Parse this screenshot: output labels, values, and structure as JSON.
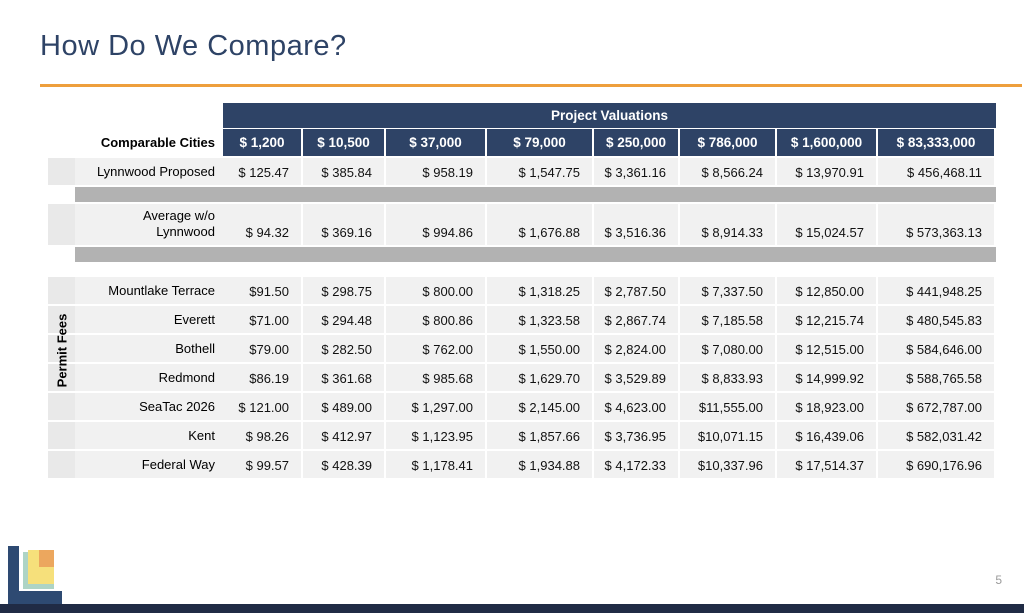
{
  "slide": {
    "title": "How Do We Compare?",
    "page_number": "5",
    "accent_orange": "#ee9f3c",
    "header_navy": "#2e4366"
  },
  "table": {
    "header_group": "Project Valuations",
    "row_header_label": "Comparable Cities",
    "side_label": "Permit Fees",
    "columns": [
      "$ 1,200",
      "$ 10,500",
      "$ 37,000",
      "$ 79,000",
      "$ 250,000",
      "$ 786,000",
      "$ 1,600,000",
      "$ 83,333,000"
    ],
    "rows": [
      {
        "kind": "data",
        "label": "Lynnwood Proposed",
        "values": [
          "$ 125.47",
          "$ 385.84",
          "$ 958.19",
          "$ 1,547.75",
          "$ 3,361.16",
          "$ 8,566.24",
          "$ 13,970.91",
          "$ 456,468.11"
        ]
      },
      {
        "kind": "separator"
      },
      {
        "kind": "data",
        "label": "Average w/o\nLynnwood",
        "values": [
          "$ 94.32",
          "$ 369.16",
          "$ 994.86",
          "$ 1,676.88",
          "$ 3,516.36",
          "$ 8,914.33",
          "$ 15,024.57",
          "$ 573,363.13"
        ]
      },
      {
        "kind": "separator"
      },
      {
        "kind": "spacer"
      },
      {
        "kind": "data",
        "label": "Mountlake Terrace",
        "values": [
          "$91.50",
          "$ 298.75",
          "$ 800.00",
          "$ 1,318.25",
          "$ 2,787.50",
          "$ 7,337.50",
          "$ 12,850.00",
          "$ 441,948.25"
        ]
      },
      {
        "kind": "data",
        "label": "Everett",
        "values": [
          "$71.00",
          "$ 294.48",
          "$ 800.86",
          "$ 1,323.58",
          "$ 2,867.74",
          "$ 7,185.58",
          "$ 12,215.74",
          "$ 480,545.83"
        ]
      },
      {
        "kind": "data",
        "label": "Bothell",
        "values": [
          "$79.00",
          "$ 282.50",
          "$ 762.00",
          "$ 1,550.00",
          "$ 2,824.00",
          "$ 7,080.00",
          "$ 12,515.00",
          "$ 584,646.00"
        ]
      },
      {
        "kind": "data",
        "label": "Redmond",
        "values": [
          "$86.19",
          "$ 361.68",
          "$ 985.68",
          "$ 1,629.70",
          "$ 3,529.89",
          "$ 8,833.93",
          "$ 14,999.92",
          "$ 588,765.58"
        ]
      },
      {
        "kind": "data",
        "label": "SeaTac 2026",
        "values": [
          "$ 121.00",
          "$ 489.00",
          "$ 1,297.00",
          "$ 2,145.00",
          "$ 4,623.00",
          "$11,555.00",
          "$ 18,923.00",
          "$ 672,787.00"
        ]
      },
      {
        "kind": "data",
        "label": "Kent",
        "values": [
          "$ 98.26",
          "$ 412.97",
          "$ 1,123.95",
          "$ 1,857.66",
          "$ 3,736.95",
          "$10,071.15",
          "$ 16,439.06",
          "$ 582,031.42"
        ]
      },
      {
        "kind": "data",
        "label": "Federal Way",
        "values": [
          "$ 99.57",
          "$ 428.39",
          "$ 1,178.41",
          "$ 1,934.88",
          "$ 4,172.33",
          "$10,337.96",
          "$ 17,514.37",
          "$ 690,176.96"
        ]
      }
    ]
  }
}
